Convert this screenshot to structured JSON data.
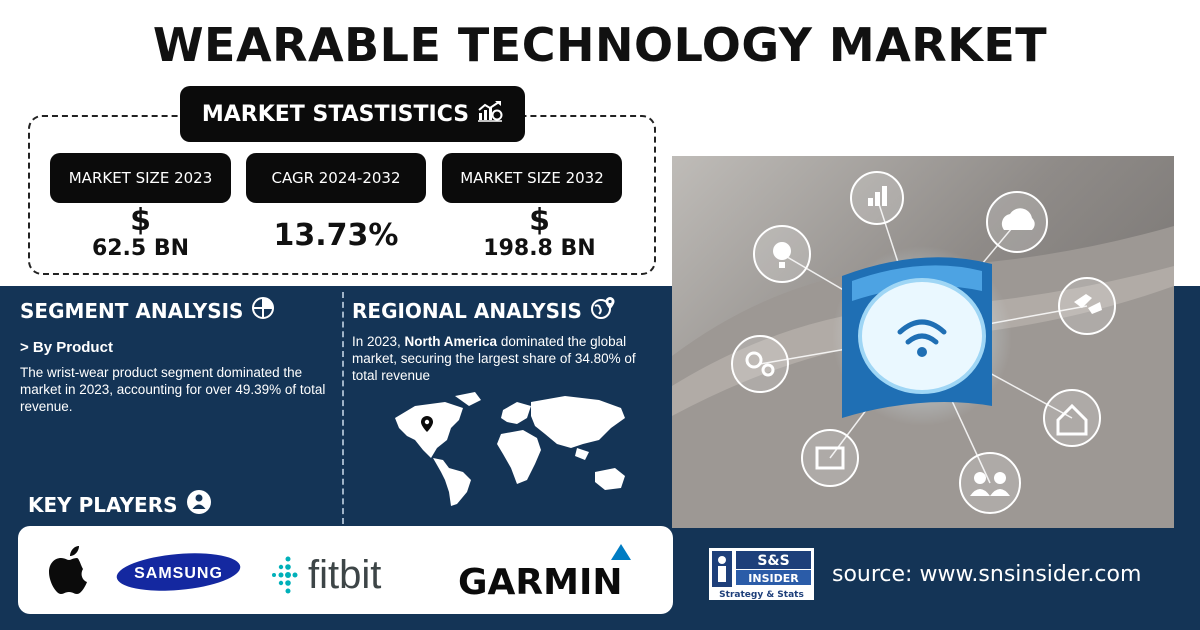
{
  "title": "WEARABLE TECHNOLOGY MARKET",
  "stats": {
    "heading": "MARKET STASTISTICS",
    "heading_icon": "growth-chart-icon",
    "items": [
      {
        "label": "MARKET SIZE 2023",
        "symbol": "$",
        "value": "62.5 BN"
      },
      {
        "label": "CAGR 2024-2032",
        "value": "13.73%"
      },
      {
        "label": "MARKET SIZE 2032",
        "symbol": "$",
        "value": "198.8 BN"
      }
    ]
  },
  "segment": {
    "heading": "SEGMENT ANALYSIS",
    "heading_icon": "segment-pie-icon",
    "subheading": "> By Product",
    "text": "The wrist-wear product segment dominated the market in 2023, accounting for over 49.39% of total revenue."
  },
  "regional": {
    "heading": "REGIONAL ANALYSIS",
    "heading_icon": "globe-pin-icon",
    "text_prefix": "In 2023, ",
    "text_bold": "North America",
    "text_suffix": " dominated the global market, securing the largest share of 34.80% of total revenue",
    "map_icon": "world-map-icon"
  },
  "key_players": {
    "heading": "KEY PLAYERS",
    "heading_icon": "person-badge-icon",
    "logos": [
      "apple-logo",
      "SAMSUNG",
      "fitbit",
      "GARMIN"
    ]
  },
  "brand": {
    "line1": "S&S",
    "line2": "INSIDER",
    "line3": "Strategy & Stats"
  },
  "source": "source: www.snsinsider.com",
  "colors": {
    "navy": "#143456",
    "black": "#0b0b0b",
    "samsung_blue": "#1428a0",
    "fitbit_teal": "#00b0b9",
    "garmin_blue": "#007cc3"
  }
}
